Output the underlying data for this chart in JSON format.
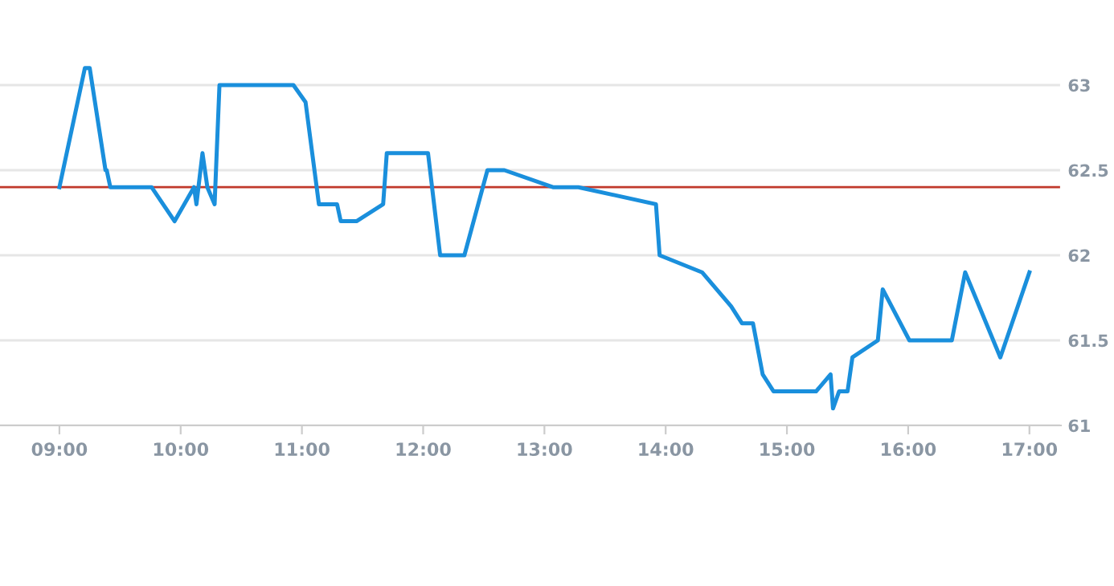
{
  "chart_data": {
    "type": "line",
    "x": [
      9.0,
      9.21,
      9.25,
      9.38,
      9.39,
      9.42,
      9.76,
      9.95,
      10.11,
      10.13,
      10.18,
      10.22,
      10.28,
      10.32,
      10.93,
      11.03,
      11.14,
      11.29,
      11.32,
      11.45,
      11.67,
      11.7,
      12.04,
      12.14,
      12.34,
      12.53,
      12.67,
      13.07,
      13.28,
      13.92,
      13.95,
      14.3,
      14.54,
      14.63,
      14.72,
      14.8,
      14.89,
      15.24,
      15.36,
      15.38,
      15.43,
      15.5,
      15.54,
      15.75,
      15.79,
      16.01,
      16.36,
      16.47,
      16.76,
      17.0
    ],
    "series": [
      {
        "color": "#1a8fdc",
        "values": [
          62.4,
          63.1,
          63.1,
          62.5,
          62.5,
          62.4,
          62.4,
          62.2,
          62.4,
          62.3,
          62.6,
          62.4,
          62.3,
          63.0,
          63.0,
          62.9,
          62.3,
          62.3,
          62.2,
          62.2,
          62.3,
          62.6,
          62.6,
          62.0,
          62.0,
          62.5,
          62.5,
          62.4,
          62.4,
          62.3,
          62.0,
          61.9,
          61.7,
          61.6,
          61.6,
          61.3,
          61.2,
          61.2,
          61.3,
          61.1,
          61.2,
          61.2,
          61.4,
          61.5,
          61.8,
          61.5,
          61.5,
          61.9,
          61.4,
          61.9
        ]
      }
    ],
    "xlim": [
      8.51,
      17.26
    ],
    "xticks": [
      {
        "value": 9,
        "label": "09:00"
      },
      {
        "value": 10,
        "label": "10:00"
      },
      {
        "value": 11,
        "label": "11:00"
      },
      {
        "value": 12,
        "label": "12:00"
      },
      {
        "value": 13,
        "label": "13:00"
      },
      {
        "value": 14,
        "label": "14:00"
      },
      {
        "value": 15,
        "label": "15:00"
      },
      {
        "value": 16,
        "label": "16:00"
      },
      {
        "value": 17,
        "label": "17:00"
      }
    ],
    "ylim": [
      61,
      63.5
    ],
    "yticks": [
      61,
      61.5,
      62,
      62.5,
      63
    ],
    "ref_lines": [
      {
        "axis": "y",
        "value": 62.4,
        "color": "#c0392b"
      }
    ],
    "grid": "y",
    "marker": "none",
    "line_style": "solid",
    "legend": false
  }
}
